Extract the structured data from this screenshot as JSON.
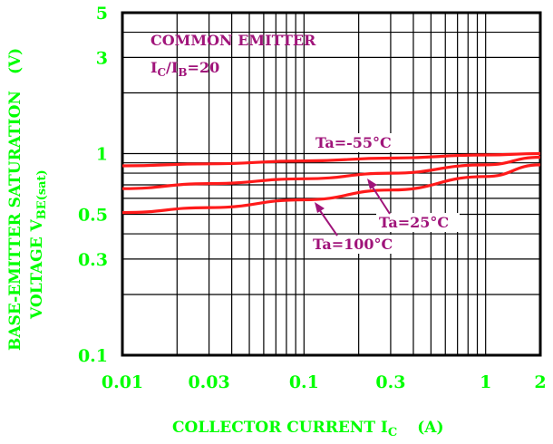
{
  "colors": {
    "axis_text": "#00ff00",
    "annotation": "#a0147a",
    "curve": "#ff1a1a",
    "grid": "#000000"
  },
  "chart_data": {
    "type": "line",
    "x_scale": "log",
    "y_scale": "log",
    "xlim": [
      0.01,
      2
    ],
    "ylim": [
      0.1,
      5
    ],
    "x_ticks": [
      {
        "value": 0.01,
        "label": "0.01"
      },
      {
        "value": 0.03,
        "label": "0.03"
      },
      {
        "value": 0.1,
        "label": "0.1"
      },
      {
        "value": 0.3,
        "label": "0.3"
      },
      {
        "value": 1,
        "label": "1"
      },
      {
        "value": 2,
        "label": "2"
      }
    ],
    "y_ticks": [
      {
        "value": 5,
        "label": "5"
      },
      {
        "value": 3,
        "label": "3"
      },
      {
        "value": 1,
        "label": "1"
      },
      {
        "value": 0.5,
        "label": "0.5"
      },
      {
        "value": 0.3,
        "label": "0.3"
      },
      {
        "value": 0.1,
        "label": "0.1"
      }
    ],
    "xlabel": {
      "main": "COLLECTOR CURRENT I",
      "sub": "C",
      "unit": "(A)"
    },
    "ylabel": {
      "line1": "BASE-EMITTER SATURATION",
      "line1_unit": "(V)",
      "line2_main": "VOLTAGE V",
      "line2_sub": "BE(sat)"
    },
    "annotation": {
      "line1": "COMMON EMITTER",
      "line2_main1": "I",
      "line2_sub1": "C",
      "line2_main2": "/I",
      "line2_sub2": "B",
      "line2_tail": "=20"
    },
    "series": [
      {
        "name": "Ta=-55°C",
        "x": [
          0.01,
          0.03,
          0.1,
          0.3,
          1,
          2
        ],
        "y": [
          0.87,
          0.89,
          0.92,
          0.95,
          0.985,
          1.0
        ]
      },
      {
        "name": "Ta=25°C",
        "x": [
          0.01,
          0.03,
          0.1,
          0.3,
          1,
          2
        ],
        "y": [
          0.67,
          0.71,
          0.75,
          0.8,
          0.88,
          0.96
        ]
      },
      {
        "name": "Ta=100°C",
        "x": [
          0.01,
          0.03,
          0.1,
          0.3,
          1,
          2
        ],
        "y": [
          0.51,
          0.54,
          0.59,
          0.66,
          0.77,
          0.88
        ]
      }
    ],
    "grid": true
  }
}
